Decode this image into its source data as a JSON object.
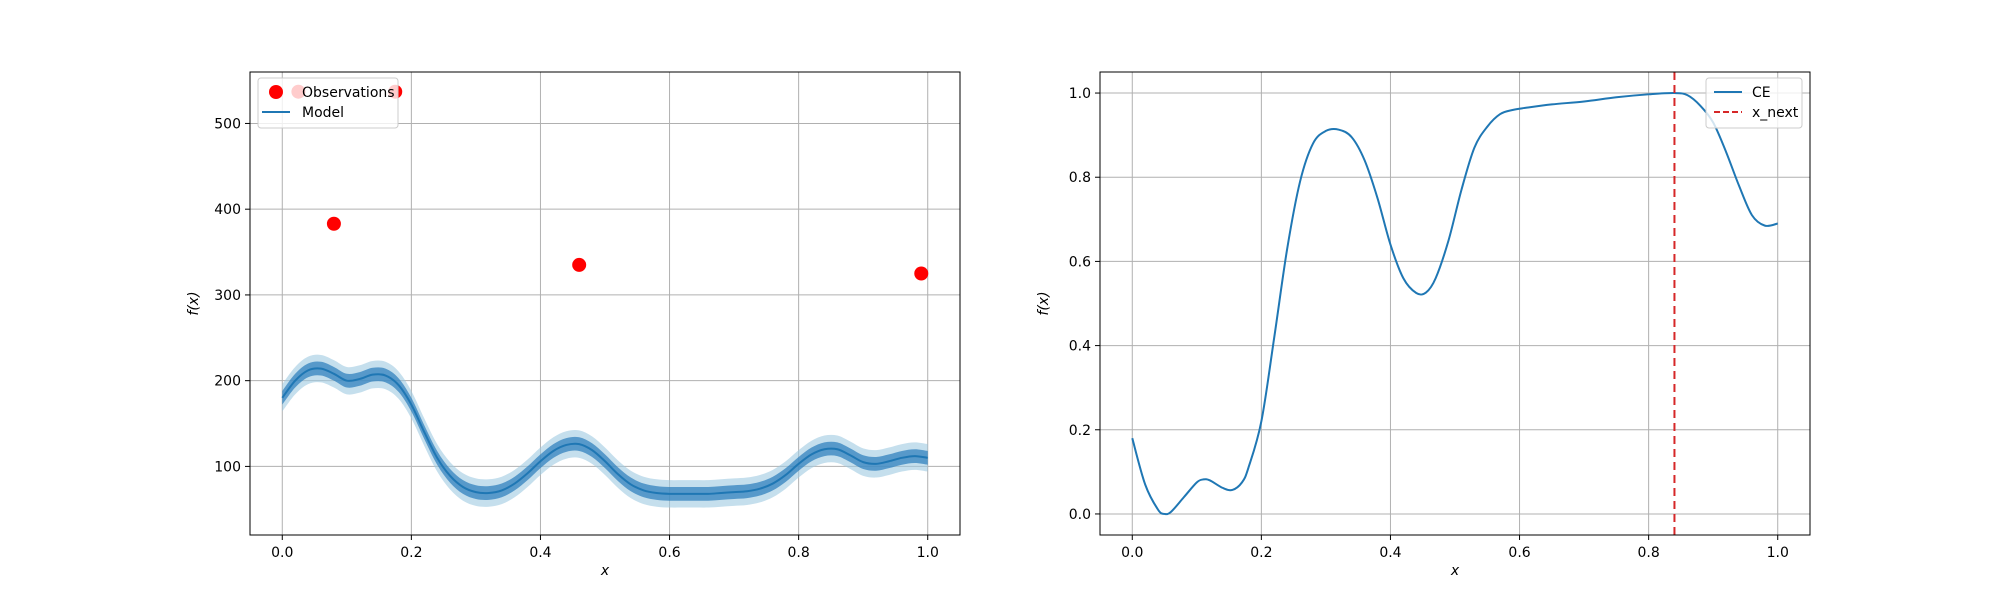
{
  "chart_data": [
    {
      "type": "line",
      "xlabel": "x",
      "ylabel": "f(x)",
      "xlim": [
        -0.05,
        1.05
      ],
      "ylim": [
        20,
        560
      ],
      "xticks": [
        0.0,
        0.2,
        0.4,
        0.6,
        0.8,
        1.0
      ],
      "xtick_labels": [
        "0.0",
        "0.2",
        "0.4",
        "0.6",
        "0.8",
        "1.0"
      ],
      "yticks": [
        100,
        200,
        300,
        400,
        500
      ],
      "ytick_labels": [
        "100",
        "200",
        "300",
        "400",
        "500"
      ],
      "grid": true,
      "legend": {
        "placement": "top-left",
        "entries": [
          {
            "label": "Observations",
            "kind": "marker",
            "color": "#ff0000"
          },
          {
            "label": "Model",
            "kind": "line",
            "color": "#1f77b4"
          }
        ]
      },
      "observations": {
        "name": "Observations",
        "color": "#ff0000",
        "points": [
          {
            "x": 0.025,
            "y": 537
          },
          {
            "x": 0.08,
            "y": 383
          },
          {
            "x": 0.175,
            "y": 537
          },
          {
            "x": 0.46,
            "y": 335
          },
          {
            "x": 0.99,
            "y": 325
          }
        ]
      },
      "model": {
        "name": "Model",
        "color": "#1f77b4",
        "x": [
          0.0,
          0.02,
          0.04,
          0.06,
          0.08,
          0.1,
          0.12,
          0.14,
          0.16,
          0.18,
          0.2,
          0.22,
          0.24,
          0.26,
          0.28,
          0.3,
          0.32,
          0.34,
          0.36,
          0.38,
          0.4,
          0.42,
          0.44,
          0.46,
          0.48,
          0.5,
          0.52,
          0.54,
          0.56,
          0.58,
          0.6,
          0.62,
          0.64,
          0.66,
          0.68,
          0.7,
          0.72,
          0.74,
          0.76,
          0.78,
          0.8,
          0.82,
          0.84,
          0.86,
          0.88,
          0.9,
          0.92,
          0.94,
          0.96,
          0.98,
          1.0
        ],
        "mean": [
          180,
          200,
          212,
          214,
          208,
          200,
          202,
          207,
          206,
          195,
          172,
          140,
          110,
          89,
          76,
          70,
          69,
          72,
          80,
          92,
          106,
          118,
          125,
          126,
          119,
          106,
          91,
          79,
          72,
          69,
          68,
          68,
          68,
          68,
          69,
          70,
          71,
          74,
          80,
          90,
          103,
          114,
          120,
          120,
          113,
          105,
          103,
          106,
          110,
          112,
          110
        ],
        "band_inner": 8,
        "band_outer": 16,
        "band_colors": [
          "#1f77b4",
          "#3182bd",
          "#9ecae1"
        ]
      }
    },
    {
      "type": "line",
      "xlabel": "x",
      "ylabel": "f(x)",
      "xlim": [
        -0.05,
        1.05
      ],
      "ylim": [
        -0.05,
        1.05
      ],
      "xticks": [
        0.0,
        0.2,
        0.4,
        0.6,
        0.8,
        1.0
      ],
      "xtick_labels": [
        "0.0",
        "0.2",
        "0.4",
        "0.6",
        "0.8",
        "1.0"
      ],
      "yticks": [
        0.0,
        0.2,
        0.4,
        0.6,
        0.8,
        1.0
      ],
      "ytick_labels": [
        "0.0",
        "0.2",
        "0.4",
        "0.6",
        "0.8",
        "1.0"
      ],
      "grid": true,
      "legend": {
        "placement": "top-right",
        "entries": [
          {
            "label": "CE",
            "kind": "line",
            "color": "#1f77b4"
          },
          {
            "label": "x_next",
            "kind": "dashed",
            "color": "#d62728"
          }
        ]
      },
      "ce": {
        "name": "CE",
        "color": "#1f77b4",
        "x": [
          0.0,
          0.02,
          0.04,
          0.05,
          0.06,
          0.08,
          0.1,
          0.11,
          0.12,
          0.14,
          0.155,
          0.17,
          0.18,
          0.2,
          0.22,
          0.24,
          0.26,
          0.28,
          0.3,
          0.32,
          0.34,
          0.36,
          0.38,
          0.4,
          0.42,
          0.44,
          0.455,
          0.47,
          0.49,
          0.51,
          0.53,
          0.55,
          0.57,
          0.59,
          0.61,
          0.65,
          0.7,
          0.75,
          0.8,
          0.84,
          0.86,
          0.88,
          0.9,
          0.92,
          0.94,
          0.96,
          0.98,
          1.0
        ],
        "y": [
          0.18,
          0.07,
          0.01,
          0.0,
          0.005,
          0.04,
          0.075,
          0.082,
          0.08,
          0.062,
          0.057,
          0.075,
          0.11,
          0.22,
          0.42,
          0.63,
          0.79,
          0.88,
          0.91,
          0.913,
          0.895,
          0.84,
          0.75,
          0.64,
          0.56,
          0.525,
          0.526,
          0.56,
          0.65,
          0.77,
          0.87,
          0.92,
          0.95,
          0.96,
          0.965,
          0.973,
          0.98,
          0.99,
          0.997,
          1.0,
          0.995,
          0.97,
          0.93,
          0.86,
          0.78,
          0.71,
          0.685,
          0.69
        ]
      },
      "x_next": {
        "name": "x_next",
        "x": 0.84,
        "color": "#d62728"
      }
    }
  ]
}
